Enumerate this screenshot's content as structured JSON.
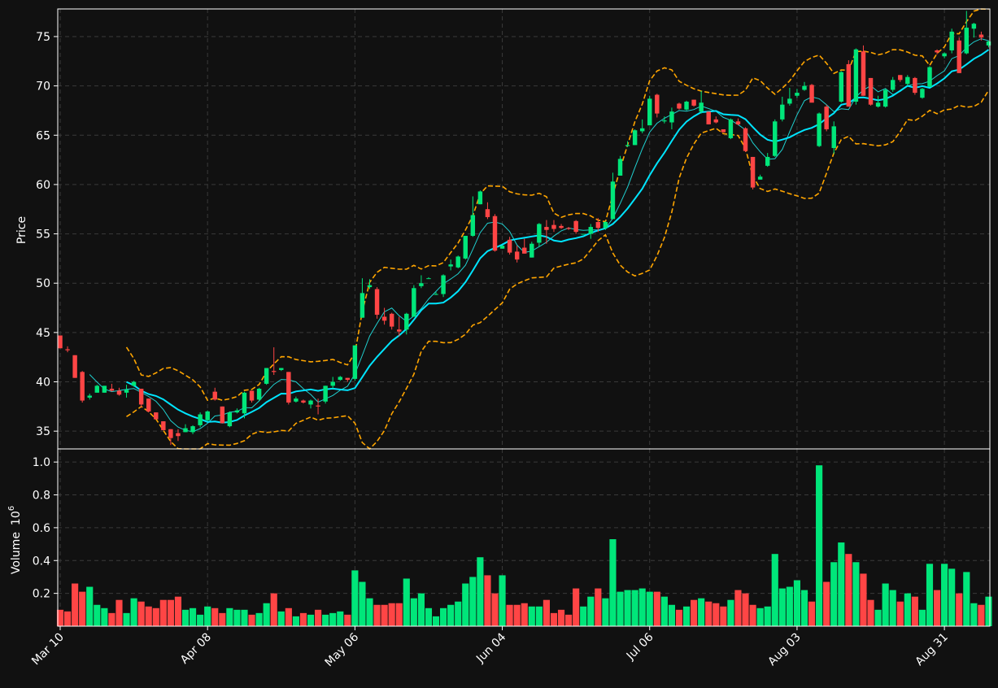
{
  "theme": {
    "background": "#111111",
    "up_color": "#00e67a",
    "down_color": "#ff4545",
    "sma_fast_color": "#20d0d0",
    "sma_slow_color": "#00e5ff",
    "band_color": "#ffa500",
    "grid_color": "#3a3a3a",
    "text_color": "#ffffff"
  },
  "chart_data": {
    "type": "candlestick",
    "ylabel": "Price",
    "volume_label": "Volume",
    "volume_exponent": "6",
    "price_ylim": [
      33.2,
      77.8
    ],
    "price_ticks": [
      35,
      40,
      45,
      50,
      55,
      60,
      65,
      70,
      75
    ],
    "volume_ylim": [
      0,
      1.08
    ],
    "volume_ticks": [
      "0.2",
      "0.4",
      "0.6",
      "0.8",
      "1.0"
    ],
    "grid": true,
    "x_ticks": [
      {
        "label": "Mar 10",
        "index": 0
      },
      {
        "label": "Apr 08",
        "index": 20
      },
      {
        "label": "May 06",
        "index": 40
      },
      {
        "label": "Jun 04",
        "index": 60
      },
      {
        "label": "Jul 06",
        "index": 80
      },
      {
        "label": "Aug 03",
        "index": 100
      },
      {
        "label": "Aug 31",
        "index": 120
      }
    ],
    "candles_ohlcv": [
      [
        44.7,
        44.7,
        43.4,
        43.4,
        0.1
      ],
      [
        43.3,
        43.6,
        43.0,
        43.2,
        0.09
      ],
      [
        42.7,
        42.7,
        40.4,
        40.4,
        0.26
      ],
      [
        41.0,
        41.1,
        37.9,
        38.1,
        0.21
      ],
      [
        38.4,
        38.8,
        38.2,
        38.6,
        0.24
      ],
      [
        38.9,
        39.7,
        38.9,
        39.6,
        0.13
      ],
      [
        38.9,
        39.6,
        38.9,
        39.6,
        0.11
      ],
      [
        39.3,
        39.8,
        39.0,
        39.1,
        0.08
      ],
      [
        39.1,
        39.4,
        38.6,
        38.7,
        0.16
      ],
      [
        38.9,
        39.7,
        38.4,
        39.2,
        0.08
      ],
      [
        39.6,
        40.1,
        39.5,
        40.0,
        0.17
      ],
      [
        39.3,
        39.3,
        37.4,
        37.7,
        0.15
      ],
      [
        38.3,
        38.3,
        36.9,
        37.0,
        0.12
      ],
      [
        36.9,
        36.9,
        36.2,
        36.2,
        0.11
      ],
      [
        36.0,
        36.0,
        35.1,
        35.1,
        0.16
      ],
      [
        35.2,
        35.2,
        33.6,
        34.3,
        0.16
      ],
      [
        34.8,
        35.2,
        34.0,
        34.5,
        0.18
      ],
      [
        34.9,
        35.7,
        34.9,
        35.3,
        0.1
      ],
      [
        34.9,
        35.6,
        34.7,
        35.5,
        0.11
      ],
      [
        35.6,
        36.9,
        35.4,
        36.7,
        0.07
      ],
      [
        36.1,
        37.1,
        36.0,
        37.0,
        0.12
      ],
      [
        39.0,
        39.4,
        38.1,
        38.2,
        0.11
      ],
      [
        37.5,
        37.5,
        35.9,
        35.8,
        0.08
      ],
      [
        35.5,
        37.0,
        35.4,
        36.9,
        0.11
      ],
      [
        36.9,
        37.3,
        36.8,
        37.1,
        0.1
      ],
      [
        36.8,
        39.0,
        36.3,
        38.9,
        0.1
      ],
      [
        39.1,
        39.1,
        37.9,
        38.1,
        0.07
      ],
      [
        38.2,
        39.4,
        38.1,
        39.3,
        0.08
      ],
      [
        39.8,
        41.4,
        39.7,
        41.4,
        0.14
      ],
      [
        41.1,
        43.5,
        40.7,
        41.0,
        0.2
      ],
      [
        41.2,
        41.4,
        41.1,
        41.4,
        0.09
      ],
      [
        41.0,
        41.0,
        37.7,
        37.9,
        0.11
      ],
      [
        38.0,
        38.5,
        37.9,
        38.3,
        0.06
      ],
      [
        38.1,
        38.2,
        37.8,
        37.9,
        0.08
      ],
      [
        37.7,
        38.2,
        37.3,
        38.1,
        0.07
      ],
      [
        37.6,
        38.3,
        36.7,
        37.5,
        0.1
      ],
      [
        38.0,
        39.6,
        37.8,
        39.6,
        0.07
      ],
      [
        39.6,
        40.5,
        39.3,
        40.0,
        0.08
      ],
      [
        40.2,
        40.6,
        40.1,
        40.5,
        0.09
      ],
      [
        40.4,
        40.4,
        40.0,
        40.2,
        0.07
      ],
      [
        40.3,
        43.7,
        40.1,
        43.7,
        0.34
      ],
      [
        46.5,
        50.5,
        46.5,
        49.0,
        0.27
      ],
      [
        49.6,
        50.4,
        49.4,
        49.8,
        0.17
      ],
      [
        49.4,
        49.6,
        46.4,
        46.8,
        0.13
      ],
      [
        46.6,
        47.5,
        45.8,
        46.2,
        0.13
      ],
      [
        46.9,
        47.0,
        45.3,
        45.6,
        0.14
      ],
      [
        45.3,
        46.6,
        44.6,
        45.1,
        0.14
      ],
      [
        45.3,
        47.0,
        44.8,
        46.9,
        0.29
      ],
      [
        46.6,
        49.8,
        46.6,
        49.5,
        0.17
      ],
      [
        49.7,
        50.8,
        49.5,
        50.0,
        0.2
      ],
      [
        50.5,
        50.6,
        50.5,
        50.5,
        0.11
      ],
      [
        48.9,
        49.1,
        48.8,
        48.9,
        0.06
      ],
      [
        48.9,
        50.9,
        48.6,
        50.8,
        0.11
      ],
      [
        51.7,
        52.4,
        51.3,
        51.9,
        0.13
      ],
      [
        51.6,
        52.8,
        51.5,
        52.7,
        0.15
      ],
      [
        52.5,
        54.8,
        52.4,
        54.8,
        0.26
      ],
      [
        54.8,
        58.8,
        54.7,
        56.9,
        0.3
      ],
      [
        58.0,
        59.4,
        58.0,
        59.3,
        0.42
      ],
      [
        57.5,
        58.2,
        56.5,
        56.7,
        0.31
      ],
      [
        56.8,
        57.0,
        53.2,
        53.3,
        0.2
      ],
      [
        53.5,
        53.8,
        53.5,
        53.8,
        0.31
      ],
      [
        54.4,
        54.7,
        52.9,
        53.1,
        0.13
      ],
      [
        53.2,
        53.8,
        52.1,
        52.4,
        0.13
      ],
      [
        53.6,
        54.5,
        53.0,
        53.0,
        0.14
      ],
      [
        52.6,
        54.2,
        52.6,
        54.0,
        0.12
      ],
      [
        54.1,
        56.1,
        53.7,
        56.0,
        0.12
      ],
      [
        55.7,
        56.4,
        54.0,
        55.4,
        0.16
      ],
      [
        55.9,
        56.4,
        55.2,
        55.5,
        0.08
      ],
      [
        55.8,
        56.0,
        55.5,
        55.6,
        0.1
      ],
      [
        55.6,
        55.7,
        55.4,
        55.5,
        0.07
      ],
      [
        56.3,
        56.4,
        55.0,
        55.2,
        0.23
      ],
      [
        55.0,
        55.0,
        55.0,
        55.0,
        0.12
      ],
      [
        55.0,
        56.0,
        54.5,
        55.7,
        0.18
      ],
      [
        56.2,
        56.6,
        55.2,
        55.6,
        0.23
      ],
      [
        55.6,
        56.3,
        55.4,
        56.2,
        0.17
      ],
      [
        56.5,
        61.2,
        56.5,
        60.3,
        0.53
      ],
      [
        60.9,
        62.9,
        60.9,
        62.6,
        0.21
      ],
      [
        63.9,
        64.4,
        63.8,
        64.0,
        0.22
      ],
      [
        64.0,
        65.6,
        64.0,
        65.5,
        0.22
      ],
      [
        65.4,
        66.6,
        65.2,
        65.7,
        0.23
      ],
      [
        66.0,
        69.0,
        66.0,
        68.7,
        0.21
      ],
      [
        69.1,
        69.2,
        66.8,
        67.2,
        0.21
      ],
      [
        66.4,
        66.9,
        66.2,
        66.5,
        0.18
      ],
      [
        66.3,
        67.8,
        65.6,
        67.4,
        0.13
      ],
      [
        68.2,
        68.3,
        67.6,
        67.7,
        0.1
      ],
      [
        67.6,
        68.5,
        67.5,
        68.4,
        0.12
      ],
      [
        68.6,
        68.6,
        67.9,
        68.0,
        0.16
      ],
      [
        67.4,
        69.5,
        67.2,
        68.3,
        0.17
      ],
      [
        67.4,
        67.4,
        66.1,
        66.1,
        0.15
      ],
      [
        66.6,
        66.9,
        66.2,
        66.3,
        0.14
      ],
      [
        65.6,
        65.6,
        65.3,
        65.3,
        0.12
      ],
      [
        64.7,
        66.7,
        64.6,
        66.6,
        0.16
      ],
      [
        66.4,
        66.7,
        66.0,
        66.1,
        0.22
      ],
      [
        65.7,
        65.8,
        63.3,
        63.4,
        0.2
      ],
      [
        62.8,
        62.8,
        59.5,
        59.7,
        0.13
      ],
      [
        60.5,
        61.0,
        60.5,
        60.8,
        0.11
      ],
      [
        61.9,
        63.2,
        61.8,
        62.8,
        0.12
      ],
      [
        62.9,
        66.6,
        62.8,
        66.4,
        0.44
      ],
      [
        66.6,
        68.9,
        66.4,
        68.1,
        0.23
      ],
      [
        68.2,
        69.8,
        68.0,
        68.7,
        0.24
      ],
      [
        69.0,
        69.7,
        68.8,
        69.3,
        0.28
      ],
      [
        69.6,
        70.4,
        69.5,
        70.0,
        0.22
      ],
      [
        70.1,
        70.2,
        68.4,
        68.3,
        0.15
      ],
      [
        63.9,
        67.3,
        63.8,
        67.2,
        0.98
      ],
      [
        67.9,
        68.1,
        65.4,
        65.6,
        0.27
      ],
      [
        63.7,
        66.4,
        63.1,
        65.9,
        0.39
      ],
      [
        68.4,
        71.5,
        68.3,
        71.4,
        0.51
      ],
      [
        72.2,
        72.6,
        67.9,
        67.9,
        0.44
      ],
      [
        68.4,
        73.8,
        68.1,
        73.7,
        0.39
      ],
      [
        73.5,
        74.1,
        69.0,
        69.0,
        0.32
      ],
      [
        70.8,
        70.8,
        68.0,
        68.1,
        0.16
      ],
      [
        67.9,
        69.0,
        67.8,
        68.3,
        0.1
      ],
      [
        67.9,
        69.7,
        67.8,
        69.6,
        0.26
      ],
      [
        69.6,
        70.9,
        69.4,
        70.6,
        0.22
      ],
      [
        71.1,
        71.1,
        70.4,
        70.6,
        0.15
      ],
      [
        70.2,
        71.1,
        70.0,
        70.9,
        0.2
      ],
      [
        70.8,
        70.9,
        69.1,
        69.3,
        0.18
      ],
      [
        68.8,
        69.8,
        68.7,
        69.7,
        0.1
      ],
      [
        69.9,
        72.0,
        69.9,
        71.9,
        0.38
      ],
      [
        73.6,
        73.7,
        73.2,
        73.4,
        0.22
      ],
      [
        73.0,
        73.4,
        72.8,
        73.3,
        0.38
      ],
      [
        73.6,
        75.8,
        73.3,
        75.5,
        0.35
      ],
      [
        74.6,
        74.9,
        71.3,
        71.3,
        0.2
      ],
      [
        73.3,
        77.6,
        73.2,
        75.9,
        0.33
      ],
      [
        75.8,
        76.4,
        74.9,
        76.3,
        0.14
      ],
      [
        75.2,
        75.5,
        74.6,
        74.9,
        0.13
      ],
      [
        74.1,
        74.6,
        73.9,
        74.5,
        0.18
      ]
    ],
    "overlays": [
      {
        "name": "sma_fast",
        "style": "thin solid",
        "color": "#20d0d0"
      },
      {
        "name": "sma_slow",
        "style": "solid",
        "color": "#00e5ff"
      },
      {
        "name": "bollinger_upper",
        "style": "dashed",
        "color": "#ffa500"
      },
      {
        "name": "bollinger_lower",
        "style": "dashed",
        "color": "#ffa500"
      }
    ]
  }
}
